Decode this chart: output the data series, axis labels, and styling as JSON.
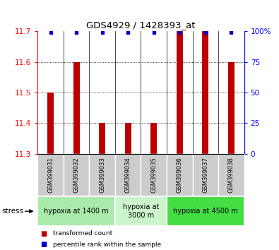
{
  "title": "GDS4929 / 1428393_at",
  "samples": [
    "GSM399031",
    "GSM399032",
    "GSM399033",
    "GSM399034",
    "GSM399035",
    "GSM399036",
    "GSM399037",
    "GSM399038"
  ],
  "red_values": [
    11.5,
    11.6,
    11.4,
    11.4,
    11.4,
    11.7,
    11.7,
    11.6
  ],
  "blue_values": [
    100,
    100,
    100,
    100,
    100,
    100,
    100,
    100
  ],
  "ylim_left": [
    11.3,
    11.7
  ],
  "ylim_right": [
    0,
    100
  ],
  "yticks_left": [
    11.3,
    11.4,
    11.5,
    11.6,
    11.7
  ],
  "yticks_right": [
    0,
    25,
    50,
    75,
    100
  ],
  "groups": [
    {
      "label": "hypoxia at 1400 m",
      "start": 0,
      "end": 3,
      "color": "#aaeaaa"
    },
    {
      "label": "hypoxia at\n3000 m",
      "start": 3,
      "end": 5,
      "color": "#ccf5cc"
    },
    {
      "label": "hypoxia at 4500 m",
      "start": 5,
      "end": 8,
      "color": "#44dd44"
    }
  ],
  "stress_label": "stress",
  "bar_color_red": "#bb0000",
  "bar_color_blue": "#0000cc",
  "bar_width": 0.25,
  "legend_red": "transformed count",
  "legend_blue": "percentile rank within the sample",
  "background_color": "#ffffff",
  "plot_bg": "#ffffff",
  "label_area_color": "#cccccc",
  "figwidth": 3.95,
  "figheight": 3.54,
  "dpi": 100
}
